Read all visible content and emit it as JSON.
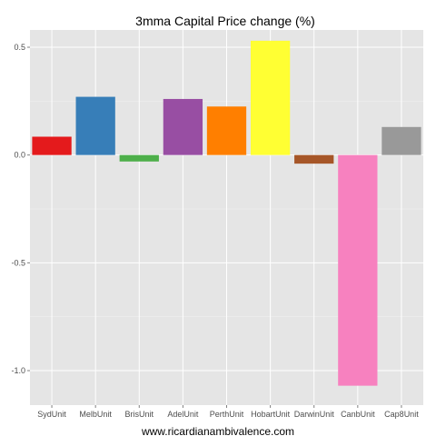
{
  "chart_data": {
    "type": "bar",
    "title": "3mma Capital Price change (%)",
    "xlabel": "",
    "ylabel": "",
    "categories": [
      "SydUnit",
      "MelbUnit",
      "BrisUnit",
      "AdelUnit",
      "PerthUnit",
      "HobartUnit",
      "DarwinUnit",
      "CanbUnit",
      "Cap8Unit"
    ],
    "values": [
      0.085,
      0.27,
      -0.03,
      0.26,
      0.225,
      0.53,
      -0.04,
      -1.07,
      0.13
    ],
    "colors": [
      "#e41a1c",
      "#377eb8",
      "#4daf4a",
      "#984ea3",
      "#ff7f00",
      "#ffff33",
      "#a65628",
      "#f781bf",
      "#999999"
    ],
    "yticks": [
      0.5,
      0.0,
      -0.5,
      -1.0
    ],
    "ytick_labels": [
      "0.5",
      "0.0",
      "-0.5",
      "-1.0"
    ],
    "ylim": [
      -1.16,
      0.58
    ],
    "grid": true,
    "panel_background": "#e5e5e5",
    "legend": "none"
  },
  "caption": "www.ricardianambivalence.com"
}
